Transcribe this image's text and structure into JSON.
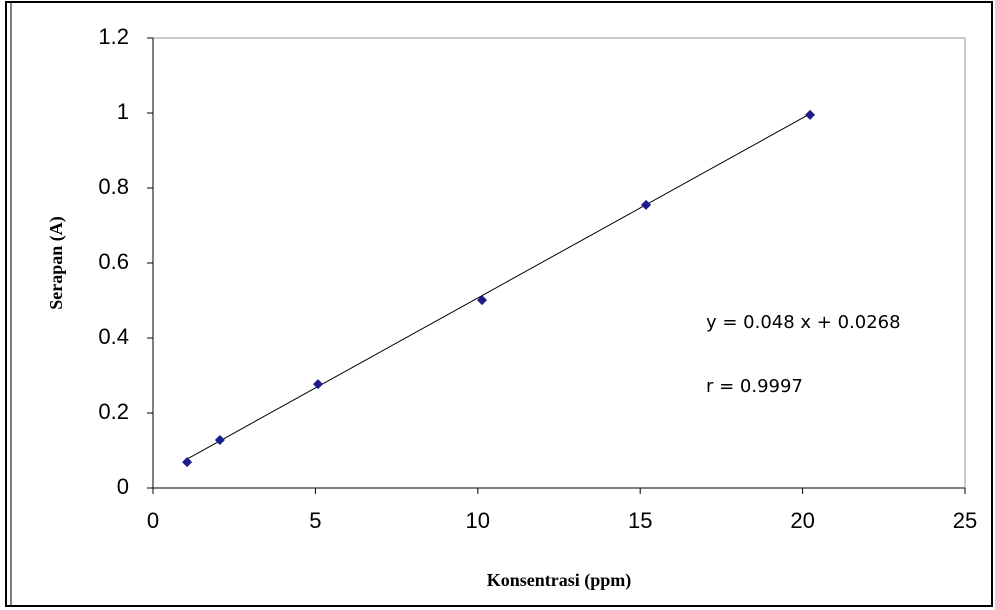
{
  "chart_data": {
    "type": "scatter",
    "x_label": "Konsentrasi (ppm)",
    "y_label": "Serapan (A)",
    "series": [
      {
        "color": "#1c1c8a",
        "x": [
          1.05,
          2.06,
          5.08,
          10.13,
          15.18,
          20.23
        ],
        "values": [
          0.069,
          0.128,
          0.277,
          0.501,
          0.755,
          0.995
        ]
      }
    ],
    "trendline": {
      "slope": 0.048,
      "intercept": 0.0268,
      "color": "#000000"
    },
    "annotations": [
      "y = 0.048 x + 0.0268",
      "r = 0.9997"
    ],
    "xlim": [
      0,
      25
    ],
    "xticks": [
      0,
      5,
      10,
      15,
      20,
      25
    ],
    "ylim": [
      0,
      1.2
    ],
    "yticks": [
      0,
      0.2,
      0.4,
      0.6,
      0.8,
      1,
      1.2
    ],
    "grid": false
  }
}
